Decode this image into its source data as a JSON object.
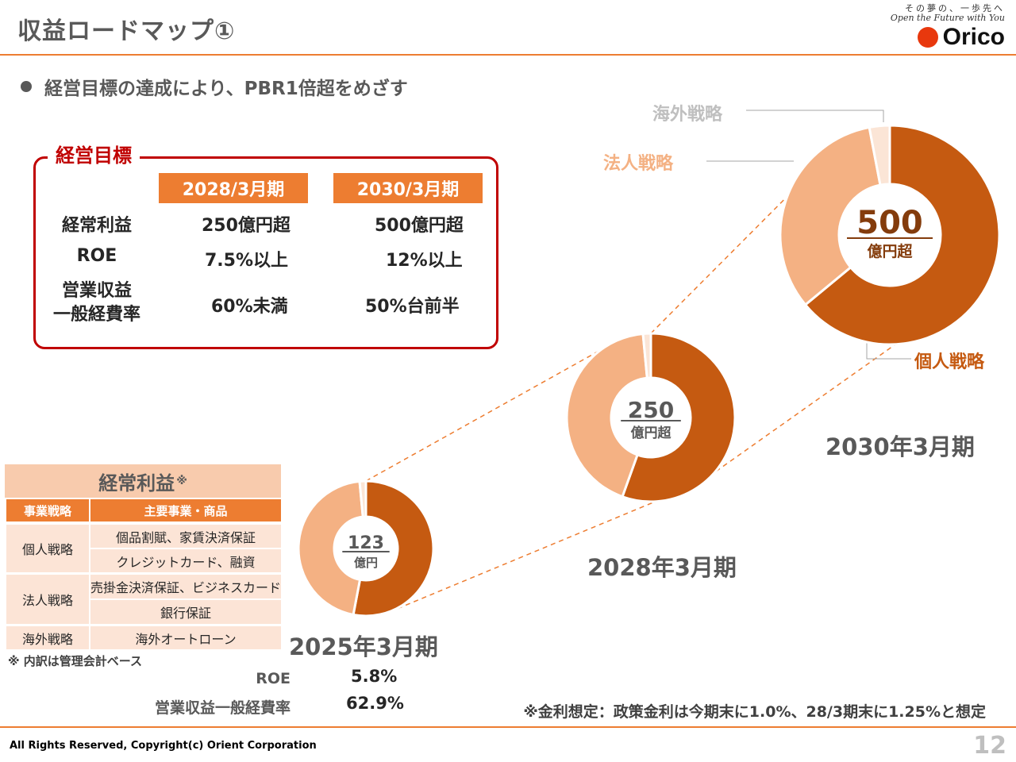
{
  "header": {
    "title": "収益ロードマップ①",
    "tagline_jp": "その夢の、一歩先へ",
    "tagline_en": "Open the Future with You",
    "logo": "Orico"
  },
  "bullet": "経営目標の達成により、PBR1倍超をめざす",
  "goals": {
    "title": "経営目標",
    "periods": [
      "2028/3月期",
      "2030/3月期"
    ],
    "rows": [
      {
        "label": "経常利益",
        "v1": "250億円超",
        "v2": "500億円超"
      },
      {
        "label": "ROE",
        "v1": "7.5%以上",
        "v2": "12%以上"
      },
      {
        "label_line1": "営業収益",
        "label_line2": "一般経費率",
        "v1": "60%未満",
        "v2": "50%台前半"
      }
    ]
  },
  "business_table": {
    "title": "経常利益",
    "title_mark": "※",
    "col_strategy": "事業戦略",
    "col_products": "主要事業・商品",
    "groups": [
      {
        "strategy": "個人戦略",
        "products": [
          "個品割賦、家賃決済保証",
          "クレジットカード、融資"
        ]
      },
      {
        "strategy": "法人戦略",
        "products": [
          "売掛金決済保証、ビジネスカード",
          "銀行保証"
        ]
      },
      {
        "strategy": "海外戦略",
        "products": [
          "海外オートローン"
        ]
      }
    ],
    "note": "※ 内訳は管理会計ベース"
  },
  "metrics_2025": {
    "roe_label": "ROE",
    "roe_value": "5.8%",
    "ratio_label": "営業収益一般経費率",
    "ratio_value": "62.9%"
  },
  "rate_note": "※金利想定：政策金利は今期末に1.0%、28/3期末に1.25%と想定",
  "footer": {
    "copyright": "All Rights Reserved, Copyright(c) Orient Corporation",
    "page": "12"
  },
  "colors": {
    "personal": "#C55A11",
    "corporate": "#F4B183",
    "overseas": "#FBE5D6",
    "accent": "#ED7D31",
    "goal_border": "#C00000"
  },
  "chart_data": {
    "type": "pie",
    "variant": "donut",
    "segment_labels": [
      "個人戦略",
      "法人戦略",
      "海外戦略"
    ],
    "charts": [
      {
        "period": "2025年3月期",
        "center_value": "123",
        "center_unit": "億円",
        "shares": [
          0.53,
          0.455,
          0.015
        ]
      },
      {
        "period": "2028年3月期",
        "center_value": "250",
        "center_unit": "億円超",
        "shares": [
          0.555,
          0.43,
          0.015
        ]
      },
      {
        "period": "2030年3月期",
        "center_value": "500",
        "center_unit": "億円超",
        "shares": [
          0.64,
          0.33,
          0.03
        ]
      }
    ]
  }
}
